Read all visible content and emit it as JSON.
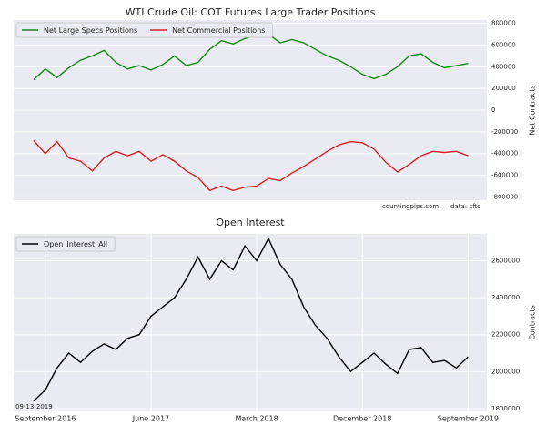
{
  "chart_data": [
    {
      "type": "line",
      "title": "WTI Crude Oil: COT Futures Large Trader Positions",
      "y_label": "Net Contracts",
      "grid": true,
      "legend": "upper left",
      "x": [
        -1,
        0,
        1,
        2,
        3,
        4,
        5,
        6,
        7,
        8,
        9,
        10,
        11,
        12,
        13,
        14,
        15,
        16,
        17,
        18,
        19,
        20,
        21,
        22,
        23,
        24,
        25,
        26,
        27,
        28,
        29,
        30,
        31,
        32,
        33,
        34,
        35,
        36
      ],
      "xlim": [
        -2.7,
        37.6
      ],
      "ylim": [
        -830000,
        830000
      ],
      "yticks": [
        -800000,
        -600000,
        -400000,
        -200000,
        0,
        200000,
        400000,
        600000,
        800000
      ],
      "annotations": [
        "countingpips.com",
        "data: cftc"
      ],
      "series": [
        {
          "name": "Net Large Specs Positions",
          "color": "#138a13",
          "values": [
            280000,
            380000,
            300000,
            390000,
            460000,
            500000,
            550000,
            440000,
            380000,
            410000,
            370000,
            420000,
            500000,
            410000,
            440000,
            560000,
            640000,
            610000,
            660000,
            690000,
            700000,
            620000,
            650000,
            620000,
            560000,
            500000,
            460000,
            400000,
            330000,
            290000,
            330000,
            400000,
            500000,
            520000,
            440000,
            390000,
            410000,
            430000
          ]
        },
        {
          "name": "Net Commercial Positions",
          "color": "#d62020",
          "values": [
            -280000,
            -400000,
            -290000,
            -440000,
            -470000,
            -560000,
            -440000,
            -380000,
            -420000,
            -380000,
            -470000,
            -410000,
            -470000,
            -560000,
            -620000,
            -740000,
            -700000,
            -740000,
            -710000,
            -700000,
            -630000,
            -650000,
            -580000,
            -520000,
            -450000,
            -380000,
            -320000,
            -290000,
            -300000,
            -360000,
            -480000,
            -570000,
            -500000,
            -420000,
            -380000,
            -390000,
            -380000,
            -420000
          ]
        }
      ]
    },
    {
      "type": "line",
      "title": "Open Interest",
      "y_label": "Contracts",
      "grid": true,
      "legend": "upper left",
      "x": [
        -1,
        0,
        1,
        2,
        3,
        4,
        5,
        6,
        7,
        8,
        9,
        10,
        11,
        12,
        13,
        14,
        15,
        16,
        17,
        18,
        19,
        20,
        21,
        22,
        23,
        24,
        25,
        26,
        27,
        28,
        29,
        30,
        31,
        32,
        33,
        34,
        35,
        36
      ],
      "xlim": [
        -2.7,
        37.6
      ],
      "xticks": [
        {
          "value": 0,
          "label": "September 2016"
        },
        {
          "value": 9,
          "label": "June 2017"
        },
        {
          "value": 18,
          "label": "March 2018"
        },
        {
          "value": 27,
          "label": "December 2018"
        },
        {
          "value": 36,
          "label": "September 2019"
        }
      ],
      "ylim": [
        1785000,
        2745000
      ],
      "yticks": [
        1800000,
        2000000,
        2200000,
        2400000,
        2600000
      ],
      "annotations": [
        "09-13-2019"
      ],
      "series": [
        {
          "name": "Open_Interest_All",
          "color": "#000000",
          "values": [
            1840000,
            1900000,
            2020000,
            2100000,
            2050000,
            2110000,
            2150000,
            2120000,
            2180000,
            2200000,
            2300000,
            2350000,
            2400000,
            2500000,
            2620000,
            2500000,
            2600000,
            2550000,
            2680000,
            2600000,
            2720000,
            2580000,
            2500000,
            2350000,
            2250000,
            2180000,
            2080000,
            2000000,
            2050000,
            2100000,
            2040000,
            1990000,
            2120000,
            2130000,
            2050000,
            2060000,
            2020000,
            2080000
          ]
        }
      ]
    }
  ]
}
